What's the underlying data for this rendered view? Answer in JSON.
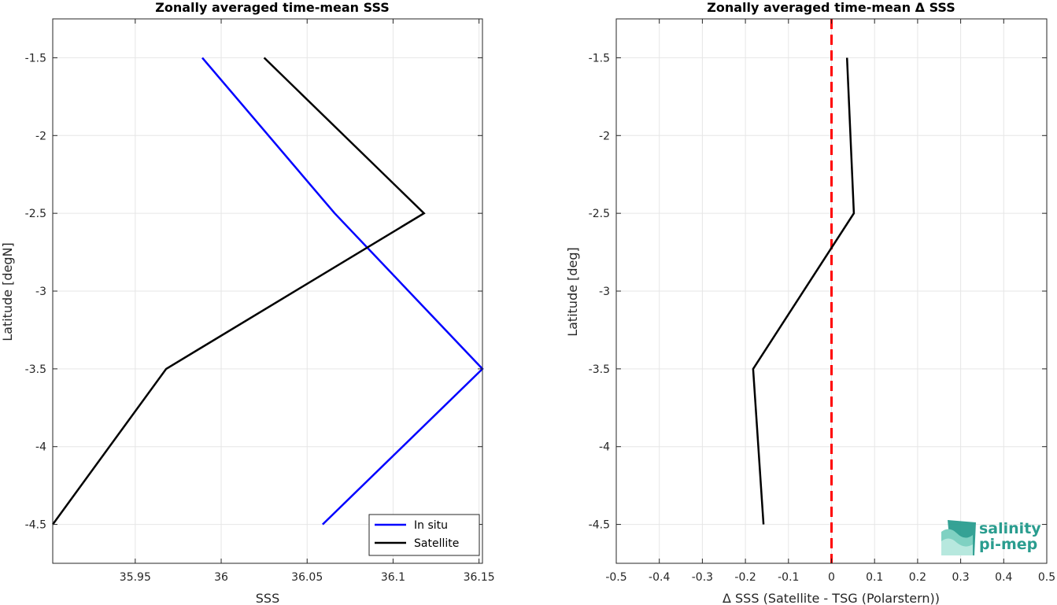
{
  "chart_data": [
    {
      "type": "line",
      "title": "Zonally averaged time-mean SSS",
      "xlabel": "SSS",
      "ylabel": "Latitude [degN]",
      "xlim": [
        35.902,
        36.152
      ],
      "ylim": [
        -4.75,
        -1.25
      ],
      "xticks": [
        35.95,
        36.0,
        36.05,
        36.1,
        36.15
      ],
      "xtick_labels": [
        "35.95",
        "36",
        "36.05",
        "36.1",
        "36.15"
      ],
      "yticks": [
        -4.5,
        -4,
        -3.5,
        -3,
        -2.5,
        -2,
        -1.5
      ],
      "ytick_labels": [
        "-4.5",
        "-4",
        "-3.5",
        "-3",
        "-2.5",
        "-2",
        "-1.5"
      ],
      "grid": true,
      "legend": "bottom-right",
      "series": [
        {
          "name": "In situ",
          "color": "#0000ff",
          "x": [
            35.989,
            36.066,
            36.152,
            36.059
          ],
          "y": [
            -1.5,
            -2.5,
            -3.5,
            -4.5
          ]
        },
        {
          "name": "Satellite",
          "color": "#000000",
          "x": [
            36.025,
            36.118,
            35.968,
            35.902
          ],
          "y": [
            -1.5,
            -2.5,
            -3.5,
            -4.5
          ]
        }
      ]
    },
    {
      "type": "line",
      "title": "Zonally averaged time-mean Δ SSS",
      "xlabel": "Δ SSS (Satellite - TSG (Polarstern))",
      "ylabel": "Latitude [deg]",
      "xlim": [
        -0.5,
        0.5
      ],
      "ylim": [
        -4.75,
        -1.25
      ],
      "xticks": [
        -0.5,
        -0.4,
        -0.3,
        -0.2,
        -0.1,
        0,
        0.1,
        0.2,
        0.3,
        0.4,
        0.5
      ],
      "xtick_labels": [
        "-0.5",
        "-0.4",
        "-0.3",
        "-0.2",
        "-0.1",
        "0",
        "0.1",
        "0.2",
        "0.3",
        "0.4",
        "0.5"
      ],
      "yticks": [
        -4.5,
        -4,
        -3.5,
        -3,
        -2.5,
        -2,
        -1.5
      ],
      "ytick_labels": [
        "-4.5",
        "-4",
        "-3.5",
        "-3",
        "-2.5",
        "-2",
        "-1.5"
      ],
      "grid": true,
      "series": [
        {
          "color": "#000000",
          "x": [
            0.036,
            0.052,
            -0.182,
            -0.158
          ],
          "y": [
            -1.5,
            -2.5,
            -3.5,
            -4.5
          ]
        }
      ],
      "reference_line": {
        "x": 0,
        "color": "#ff0000",
        "style": "dashed"
      }
    }
  ],
  "logo": {
    "line1": "salinity",
    "line2": "pi-mep",
    "color": "#2a9d8f"
  }
}
